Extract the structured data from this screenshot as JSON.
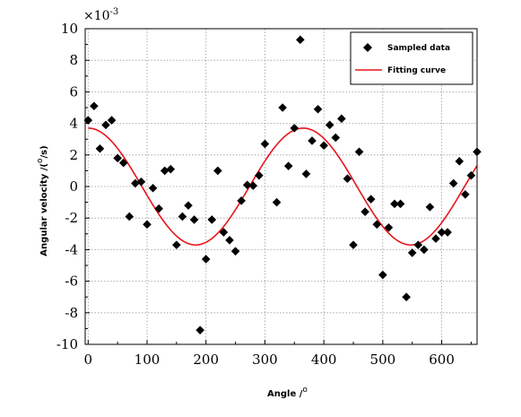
{
  "chart_data": {
    "type": "scatter",
    "exponent_label": {
      "base": "×10",
      "power": "-3"
    },
    "xlabel": {
      "text": "Angle /",
      "sup": "o"
    },
    "ylabel": {
      "prefix": "Angular velocity /(",
      "sup": "o",
      "suffix": "/s)"
    },
    "xlim": [
      -5,
      660
    ],
    "ylim": [
      -10,
      10
    ],
    "xticks": [
      0,
      100,
      200,
      300,
      400,
      500,
      600
    ],
    "yticks": [
      -10,
      -8,
      -6,
      -4,
      -2,
      0,
      2,
      4,
      6,
      8,
      10
    ],
    "grid": true,
    "legend": {
      "position": "top-right",
      "entries": [
        "Sampled data",
        "Fitting curve"
      ]
    },
    "series": [
      {
        "name": "Sampled data",
        "kind": "scatter",
        "marker": "diamond",
        "color": "#000000",
        "points": [
          [
            0,
            4.2
          ],
          [
            10,
            5.1
          ],
          [
            20,
            2.4
          ],
          [
            30,
            3.9
          ],
          [
            40,
            4.2
          ],
          [
            50,
            1.8
          ],
          [
            60,
            1.5
          ],
          [
            70,
            -1.9
          ],
          [
            80,
            0.2
          ],
          [
            90,
            0.3
          ],
          [
            100,
            -2.4
          ],
          [
            110,
            -0.1
          ],
          [
            120,
            -1.4
          ],
          [
            130,
            1.0
          ],
          [
            140,
            1.1
          ],
          [
            150,
            -3.7
          ],
          [
            160,
            -1.9
          ],
          [
            170,
            -1.2
          ],
          [
            180,
            -2.1
          ],
          [
            190,
            -9.1
          ],
          [
            200,
            -4.6
          ],
          [
            210,
            -2.1
          ],
          [
            220,
            1.0
          ],
          [
            230,
            -2.9
          ],
          [
            240,
            -3.4
          ],
          [
            250,
            -4.1
          ],
          [
            260,
            -0.9
          ],
          [
            270,
            0.1
          ],
          [
            280,
            0.05
          ],
          [
            290,
            0.7
          ],
          [
            300,
            2.7
          ],
          [
            320,
            -1.0
          ],
          [
            330,
            5.0
          ],
          [
            340,
            1.3
          ],
          [
            350,
            3.7
          ],
          [
            360,
            9.3
          ],
          [
            370,
            0.8
          ],
          [
            380,
            2.9
          ],
          [
            390,
            4.9
          ],
          [
            400,
            2.6
          ],
          [
            410,
            3.9
          ],
          [
            420,
            3.1
          ],
          [
            430,
            4.3
          ],
          [
            440,
            0.5
          ],
          [
            450,
            -3.7
          ],
          [
            460,
            2.2
          ],
          [
            470,
            -1.6
          ],
          [
            480,
            -0.8
          ],
          [
            490,
            -2.4
          ],
          [
            500,
            -5.6
          ],
          [
            510,
            -2.6
          ],
          [
            520,
            -1.1
          ],
          [
            530,
            -1.1
          ],
          [
            540,
            -7.0
          ],
          [
            550,
            -4.2
          ],
          [
            560,
            -3.7
          ],
          [
            570,
            -4.0
          ],
          [
            580,
            -1.3
          ],
          [
            590,
            -3.3
          ],
          [
            600,
            -2.9
          ],
          [
            610,
            -2.9
          ],
          [
            620,
            0.2
          ],
          [
            630,
            1.6
          ],
          [
            640,
            -0.5
          ],
          [
            650,
            0.7
          ],
          [
            660,
            2.2
          ]
        ]
      },
      {
        "name": "Fitting curve",
        "kind": "line",
        "color": "#e8141c",
        "amplitude": 3.7,
        "period": 365,
        "phase_x": 0,
        "offset": 0
      }
    ]
  }
}
